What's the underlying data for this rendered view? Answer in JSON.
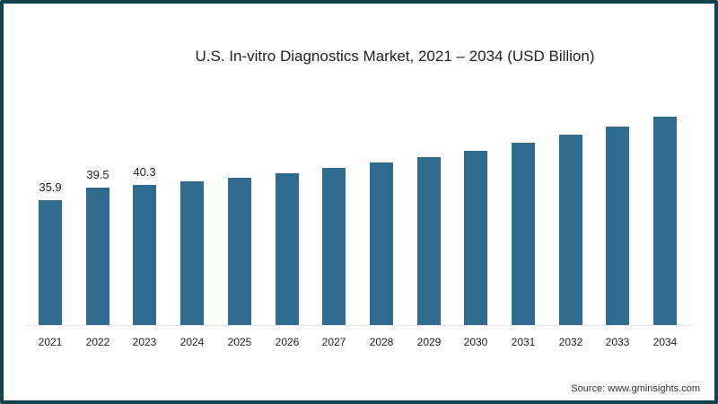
{
  "chart_data": {
    "type": "bar",
    "title": "U.S. In-vitro Diagnostics Market, 2021 – 2034 (USD Billion)",
    "xlabel": "",
    "ylabel": "",
    "categories": [
      "2021",
      "2022",
      "2023",
      "2024",
      "2025",
      "2026",
      "2027",
      "2028",
      "2029",
      "2030",
      "2031",
      "2032",
      "2033",
      "2034"
    ],
    "values": [
      35.9,
      39.5,
      40.3,
      41.3,
      42.4,
      43.7,
      45.2,
      46.8,
      48.3,
      50.1,
      52.5,
      54.8,
      57.1,
      60.0
    ],
    "data_labels": [
      "35.9",
      "39.5",
      "40.3",
      "",
      "",
      "",
      "",
      "",
      "",
      "",
      "",
      "",
      "",
      ""
    ],
    "ylim": [
      0,
      65
    ],
    "grid": false,
    "legend": null,
    "bar_color": "#2f6b8f",
    "source": "Source: www.gminsights.com"
  },
  "frame_color": "#12444f"
}
